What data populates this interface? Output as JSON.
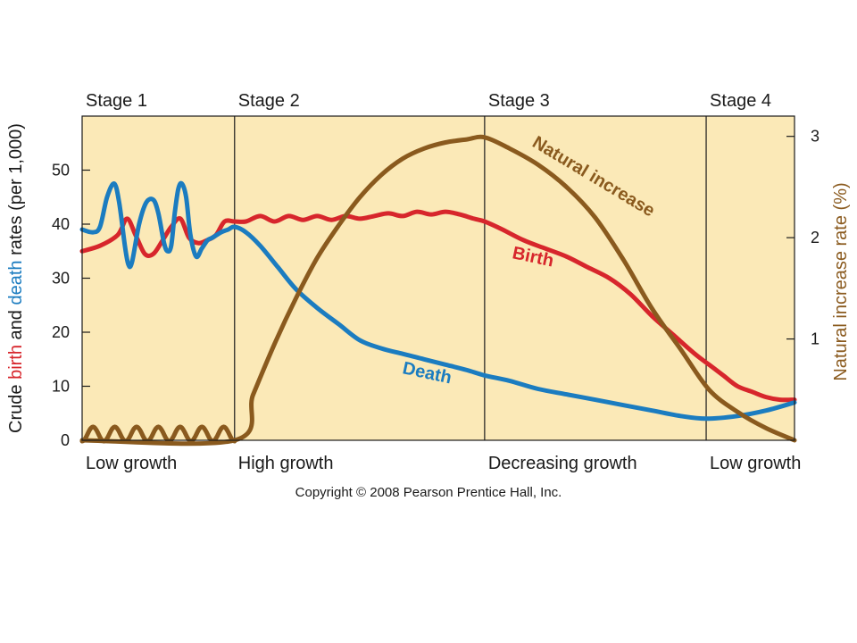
{
  "chart_data": {
    "type": "line",
    "title": "",
    "ylabel_left": {
      "parts": [
        {
          "text": "Crude ",
          "color": "#1a1a1a"
        },
        {
          "text": "birth",
          "color": "#d7262c"
        },
        {
          "text": " and ",
          "color": "#1a1a1a"
        },
        {
          "text": "death",
          "color": "#1b7cc0"
        },
        {
          "text": " rates (per 1,000)",
          "color": "#1a1a1a"
        }
      ]
    },
    "ylabel_right": {
      "text": "Natural increase rate (%)",
      "color": "#8a5a1e"
    },
    "xlim": [
      0,
      100
    ],
    "ylim_left": [
      0,
      60
    ],
    "ylim_right": [
      0,
      3.2
    ],
    "yticks_left": [
      0,
      10,
      20,
      30,
      40,
      50
    ],
    "yticks_right": [
      1,
      2,
      3
    ],
    "stages": [
      {
        "label": "Stage 1",
        "growth": "Low growth",
        "start": 0,
        "end": 21.4
      },
      {
        "label": "Stage 2",
        "growth": "High growth",
        "start": 21.4,
        "end": 56.5
      },
      {
        "label": "Stage 3",
        "growth": "Decreasing growth",
        "start": 56.5,
        "end": 87.6
      },
      {
        "label": "Stage 4",
        "growth": "Low growth",
        "start": 87.6,
        "end": 100
      }
    ],
    "series": [
      {
        "name": "Birth",
        "axis": "left",
        "color": "#d7262c",
        "x": [
          0,
          2.5,
          5,
          6.3,
          7.5,
          8.8,
          10,
          11.3,
          12.5,
          13.8,
          15,
          16.3,
          17.5,
          18.8,
          20,
          21.4,
          23,
          25,
          27,
          29,
          31,
          33,
          35,
          37,
          39,
          41,
          43,
          45,
          47,
          49,
          51,
          53,
          55,
          56.5,
          59,
          62,
          65,
          68,
          71,
          74,
          77,
          80,
          83,
          86,
          88,
          90,
          92,
          94,
          96,
          98,
          100
        ],
        "y": [
          35,
          36,
          38,
          41,
          38,
          34.5,
          34.5,
          37,
          39.5,
          41,
          37.5,
          36.5,
          37,
          38,
          40.5,
          40.5,
          40.5,
          41.5,
          40.5,
          41.5,
          40.8,
          41.5,
          40.8,
          41.5,
          41,
          41.5,
          42,
          41.5,
          42.3,
          41.8,
          42.3,
          41.8,
          41,
          40.5,
          39,
          37,
          35.5,
          34,
          32,
          30,
          27,
          23,
          19.5,
          16,
          14,
          12,
          10,
          9,
          8,
          7.5,
          7.5
        ]
      },
      {
        "name": "Death",
        "axis": "left",
        "color": "#1b7cc0",
        "x": [
          0,
          1.5,
          2.5,
          3.5,
          4.5,
          5.2,
          6,
          6.5,
          7,
          8,
          9,
          10,
          10.7,
          11.5,
          12,
          12.5,
          13,
          13.5,
          14,
          14.6,
          15.2,
          16,
          16.8,
          17.6,
          18.3,
          19.5,
          20.5,
          21.4,
          23,
          25,
          27.5,
          30,
          33,
          36,
          39,
          42,
          45,
          48,
          51,
          54,
          56.5,
          60,
          64,
          68,
          72,
          76,
          80,
          84,
          87.6,
          92,
          96,
          100
        ],
        "y": [
          39,
          38.5,
          39.5,
          45,
          47.5,
          44,
          36,
          32.5,
          33,
          40,
          44,
          44.5,
          42,
          36.5,
          35,
          36,
          42,
          46.5,
          47.5,
          45,
          38,
          34,
          35.5,
          37,
          37.5,
          38.5,
          39,
          39.5,
          38.5,
          36,
          32,
          28,
          24.5,
          21.5,
          18.5,
          17,
          16,
          15,
          14,
          13,
          12,
          11,
          9.5,
          8.5,
          7.5,
          6.5,
          5.5,
          4.5,
          4,
          4.5,
          5.5,
          7
        ]
      },
      {
        "name": "Natural increase",
        "axis": "right",
        "color": "#8a5a1e",
        "x": [
          0,
          21.4,
          24,
          27,
          30,
          33,
          36,
          39,
          42,
          45,
          48,
          51,
          54,
          56.5,
          60,
          64,
          68,
          72,
          76,
          80,
          84,
          88,
          92,
          96,
          100
        ],
        "y": [
          0,
          0,
          0.45,
          0.95,
          1.4,
          1.8,
          2.12,
          2.4,
          2.62,
          2.78,
          2.88,
          2.94,
          2.97,
          2.99,
          2.88,
          2.72,
          2.5,
          2.2,
          1.78,
          1.3,
          0.9,
          0.5,
          0.28,
          0.12,
          0
        ]
      }
    ],
    "series_labels": {
      "birth": "Birth",
      "death": "Death",
      "natural": "Natural increase"
    },
    "copyright": "Copyright © 2008 Pearson Prentice Hall, Inc.",
    "colors": {
      "plot_bg": "#fbe9b7",
      "birth": "#d7262c",
      "death": "#1b7cc0",
      "natural": "#8a5a1e"
    }
  }
}
